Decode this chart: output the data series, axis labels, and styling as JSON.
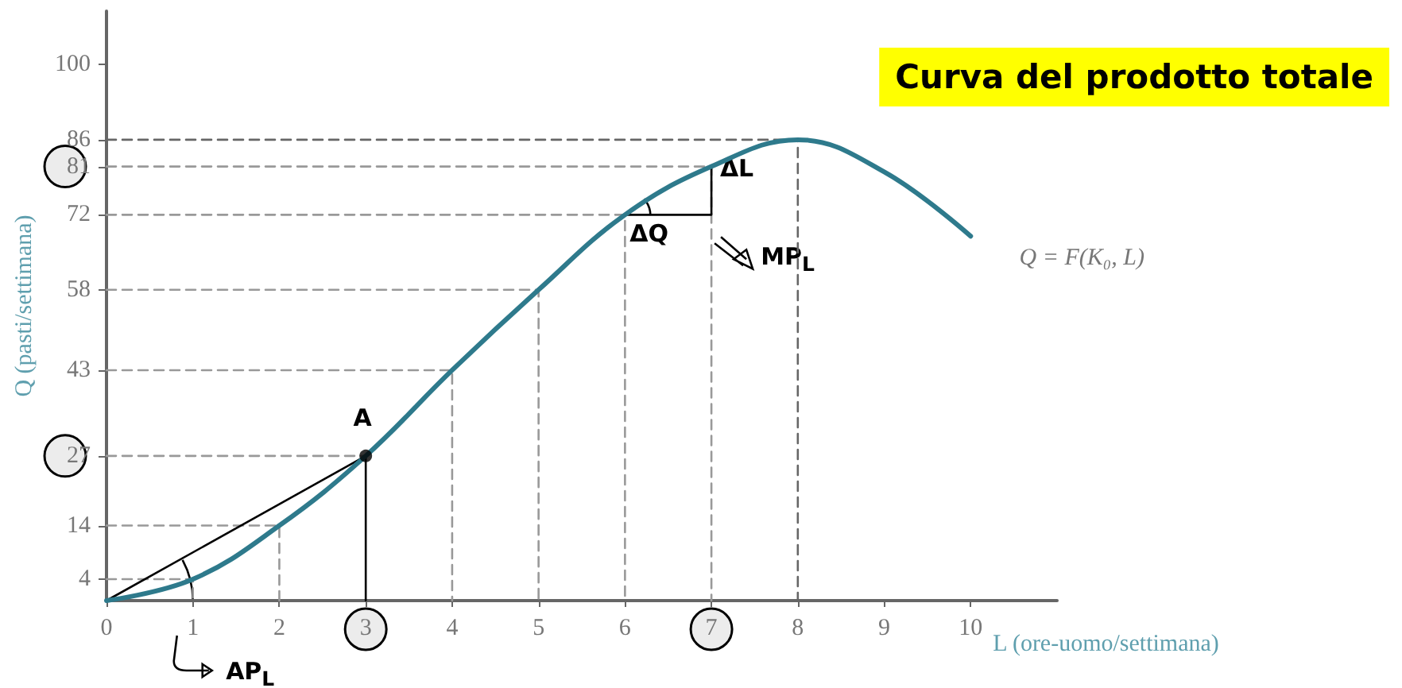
{
  "chart_data": {
    "type": "line",
    "title": "Curva del prodotto totale",
    "xlabel": "L (ore-uomo/settimana)",
    "ylabel": "Q (pasti/settimana)",
    "xlim": [
      0,
      11
    ],
    "xticks": [
      0,
      1,
      2,
      3,
      4,
      5,
      6,
      7,
      8,
      9,
      10
    ],
    "ylim": [
      0,
      110
    ],
    "yticks": [
      4,
      14,
      27,
      43,
      58,
      72,
      81,
      86,
      100
    ],
    "marker": "none",
    "series": [
      {
        "color": "#999999",
        "line_style": "dashed",
        "x": [
          0,
          1,
          1
        ],
        "values": [
          4,
          4,
          0
        ]
      },
      {
        "color": "#999999",
        "line_style": "dashed",
        "x": [
          0,
          2,
          2
        ],
        "values": [
          14,
          14,
          0
        ]
      },
      {
        "color": "#999999",
        "line_style": "dashed",
        "x": [
          0,
          3
        ],
        "values": [
          27,
          27
        ]
      },
      {
        "color": "#999999",
        "line_style": "dashed",
        "x": [
          0,
          4,
          4
        ],
        "values": [
          43,
          43,
          0
        ]
      },
      {
        "color": "#999999",
        "line_style": "dashed",
        "x": [
          0,
          5,
          5
        ],
        "values": [
          58,
          58,
          0
        ]
      },
      {
        "color": "#999999",
        "line_style": "dashed",
        "x": [
          0,
          6,
          6
        ],
        "values": [
          72,
          72,
          0
        ]
      },
      {
        "color": "#999999",
        "line_style": "dashed",
        "x": [
          0,
          7,
          7
        ],
        "values": [
          81,
          81,
          0
        ]
      },
      {
        "color": "#666666",
        "line_style": "dashed",
        "x": [
          0,
          8,
          8
        ],
        "values": [
          86,
          86,
          0
        ]
      },
      {
        "color": "#000000",
        "line_style": "solid",
        "x": [
          0,
          3
        ],
        "values": [
          0,
          27
        ]
      },
      {
        "color": "#000000",
        "line_style": "solid",
        "x": [
          3,
          3
        ],
        "values": [
          27,
          0
        ]
      },
      {
        "color": "#000000",
        "line_style": "solid",
        "x": [
          6,
          7,
          7
        ],
        "values": [
          72,
          72,
          81
        ]
      },
      {
        "color": "#2e7a8c",
        "line_style": "solid",
        "x": [
          0,
          1,
          2,
          3,
          4,
          5,
          6,
          7,
          8,
          9,
          10
        ],
        "values": [
          0,
          4,
          14,
          27,
          43,
          58,
          72,
          81,
          86,
          80,
          68
        ]
      },
      {
        "type": "scatter",
        "marker": "circle",
        "color": "#000000",
        "x": [
          3
        ],
        "values": [
          27
        ]
      }
    ],
    "annotations": [
      {
        "text": "A",
        "x": 3,
        "y": 27
      },
      {
        "text": "ΔL",
        "x": 7,
        "y": 77
      },
      {
        "text": "ΔQ",
        "x": 6.5,
        "y": 72
      },
      {
        "text": "MP$_{L}$",
        "x": 7,
        "y": 72
      },
      {
        "text": "AP$_{L}$",
        "x": 1,
        "y": 0
      },
      {
        "text": "Q = F(K₀, L)",
        "x": 10,
        "y": 68
      }
    ]
  }
}
